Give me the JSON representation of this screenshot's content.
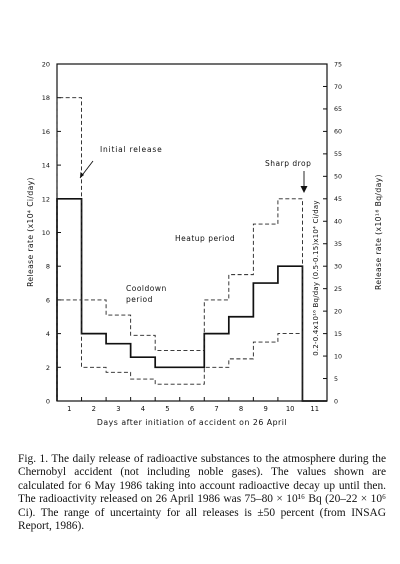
{
  "chart_data": {
    "type": "line",
    "subtype": "step",
    "xlabel": "Days after initiation of accident on 26 April",
    "ylabel_left": "Release rate (x10⁴ Ci/day)",
    "ylabel_right": "Release rate (x10¹⁶ Bq/day)",
    "ylabel_inner": "0.2-0.4x10¹⁶ Bq/day    (0.5-0.15)x10⁴ Ci/day",
    "x_ticks": [
      "1",
      "2",
      "3",
      "4",
      "5",
      "6",
      "7",
      "8",
      "9",
      "10",
      "11"
    ],
    "xlim": [
      0.5,
      11.5
    ],
    "y_left_ticks": [
      0,
      2,
      4,
      6,
      8,
      10,
      12,
      14,
      16,
      18,
      20
    ],
    "y_right_ticks": [
      0,
      5,
      10,
      15,
      20,
      25,
      30,
      35,
      40,
      45,
      50,
      55,
      60,
      65,
      70,
      75
    ],
    "ylim": [
      0,
      20
    ],
    "y_right_scale": 3.75,
    "series": [
      {
        "values": [
          12,
          4,
          3.4,
          2.6,
          2,
          2,
          4,
          5,
          7,
          8,
          0
        ]
      },
      {
        "values": [
          18,
          6,
          5.1,
          3.9,
          3,
          3,
          6,
          7.5,
          10.5,
          12,
          0
        ]
      },
      {
        "values": [
          6,
          2,
          1.7,
          1.3,
          1,
          1,
          2,
          2.5,
          3.5,
          4,
          0
        ]
      }
    ],
    "annotations": [
      "Initial release",
      "Sharp drop",
      "Heatup period",
      "Cooldown period"
    ],
    "grid": false,
    "legend": "none"
  },
  "caption": "Fig. 1. The daily release of radioactive substances to the atmosphere during the Chernobyl accident (not including noble gases). The values shown are calculated for 6 May 1986 taking into account radioactive decay up until then. The radioactivity released on 26 April 1986 was 75–80 × 10¹⁶ Bq (20–22 × 10⁶ Ci). The range of uncertainty for all releases is ±50 percent (from INSAG Report, 1986)."
}
